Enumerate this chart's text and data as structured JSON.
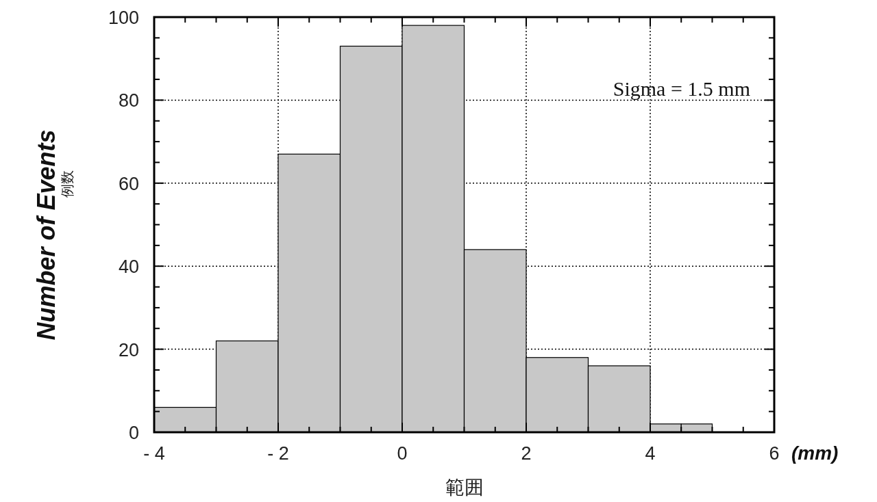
{
  "chart_data": {
    "type": "histogram",
    "xlabel": "範囲",
    "ylabel": "Number of Events",
    "bins": [
      -4,
      -3,
      -2,
      -1,
      0,
      1,
      2,
      3,
      4,
      4.5,
      5
    ],
    "values": [
      6,
      22,
      67,
      93,
      98,
      44,
      18,
      16,
      2,
      2
    ],
    "color": "#c8c8c8",
    "xlim": [
      -4,
      6
    ],
    "ylim": [
      0,
      100
    ],
    "xticks": [
      {
        "value": -4,
        "label": "- 4"
      },
      {
        "value": -2,
        "label": "- 2"
      },
      0,
      2,
      4,
      6
    ],
    "yticks": [
      0,
      20,
      40,
      60,
      80,
      100
    ],
    "grid": true,
    "annotations": [
      "Sigma = 1.5 mm",
      "(mm)",
      "例数"
    ]
  }
}
